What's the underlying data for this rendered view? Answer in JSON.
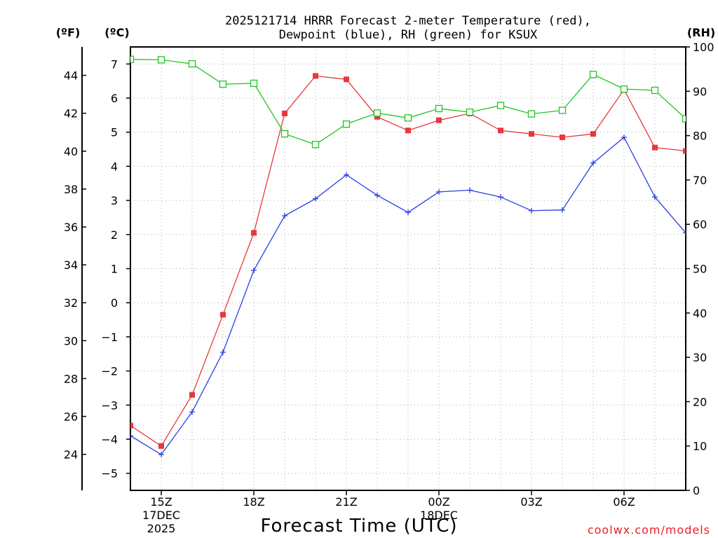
{
  "chart_data": {
    "type": "line",
    "title_line1": "2025121714 HRRR Forecast 2-meter Temperature (red),",
    "title_line2": "Dewpoint (blue), RH (green) for KSUX",
    "xlabel": "Forecast Time (UTC)",
    "credit": "coolwx.com/models",
    "units": {
      "fahrenheit": "(ºF)",
      "celsius": "(ºC)",
      "rh": "(RH)"
    },
    "x_hours": [
      14,
      15,
      16,
      17,
      18,
      19,
      20,
      21,
      22,
      23,
      24,
      25,
      26,
      27,
      28,
      29,
      30,
      31,
      32
    ],
    "x_ticks": [
      {
        "hour": 15,
        "lines": [
          "15Z",
          "17DEC",
          "2025"
        ]
      },
      {
        "hour": 18,
        "lines": [
          "18Z"
        ]
      },
      {
        "hour": 21,
        "lines": [
          "21Z"
        ]
      },
      {
        "hour": 24,
        "lines": [
          "00Z",
          "18DEC"
        ]
      },
      {
        "hour": 27,
        "lines": [
          "03Z"
        ]
      },
      {
        "hour": 30,
        "lines": [
          "06Z"
        ]
      }
    ],
    "celsius_axis": {
      "range": [
        -5.5,
        7.5
      ],
      "ticks": [
        7,
        6,
        5,
        4,
        3,
        2,
        1,
        0,
        -1,
        -2,
        -3,
        -4,
        -5
      ]
    },
    "fahrenheit_ticks": [
      44,
      42,
      40,
      38,
      36,
      34,
      32,
      30,
      28,
      26,
      24
    ],
    "rh_axis": {
      "range": [
        0,
        100
      ],
      "ticks": [
        0,
        10,
        20,
        30,
        40,
        50,
        60,
        70,
        80,
        90,
        100
      ]
    },
    "series": [
      {
        "name": "Temperature",
        "color": "#e8373d",
        "marker": "filled-square",
        "axis": "celsius",
        "values": [
          -3.6,
          -4.2,
          -2.7,
          -0.35,
          2.05,
          5.55,
          6.65,
          6.55,
          5.45,
          5.05,
          5.35,
          5.55,
          5.05,
          4.95,
          4.85,
          4.95,
          6.25,
          4.55,
          4.45
        ]
      },
      {
        "name": "Dewpoint",
        "color": "#2a3fe0",
        "marker": "plus",
        "axis": "celsius",
        "values": [
          -3.9,
          -4.45,
          -3.2,
          -1.45,
          0.95,
          2.55,
          3.05,
          3.75,
          3.15,
          2.65,
          3.25,
          3.3,
          3.1,
          2.7,
          2.72,
          4.1,
          4.85,
          3.1,
          2.05
        ]
      },
      {
        "name": "RH",
        "color": "#22c422",
        "marker": "open-square",
        "axis": "rh",
        "values": [
          97.2,
          97.1,
          96.2,
          91.6,
          91.8,
          80.4,
          78.0,
          82.6,
          85.1,
          84.0,
          86.1,
          85.3,
          86.8,
          84.9,
          85.7,
          93.8,
          90.5,
          90.2,
          83.8
        ]
      }
    ]
  }
}
